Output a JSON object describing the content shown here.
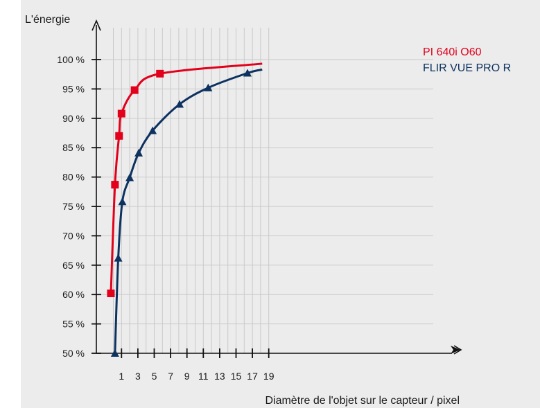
{
  "chart_data": {
    "type": "line",
    "ylabel": "L'énergie",
    "xlabel": "Diamètre de l'objet sur le capteur / pixel",
    "xlim": [
      -0.5,
      19.5
    ],
    "ylim": [
      50,
      102
    ],
    "x_ticks": [
      1,
      3,
      5,
      7,
      9,
      11,
      13,
      15,
      17,
      19
    ],
    "y_ticks": [
      50,
      55,
      60,
      65,
      70,
      75,
      80,
      85,
      90,
      95,
      100
    ],
    "y_tick_labels": [
      "50 %",
      "55 %",
      "60 %",
      "65 %",
      "70 %",
      "75 %",
      "80 %",
      "85 %",
      "90 %",
      "95 %",
      "100 %"
    ],
    "grid": true,
    "legend_position": "top-right",
    "series": [
      {
        "name": "PI 640i O60",
        "color": "#e2001a",
        "marker": "square",
        "points": [
          [
            -0.3,
            60.2
          ],
          [
            0.2,
            78.7
          ],
          [
            0.7,
            87
          ],
          [
            1.0,
            90.8
          ],
          [
            2.6,
            94.8
          ],
          [
            5.7,
            97.6
          ]
        ],
        "curve_end": [
          18.2,
          99.3
        ]
      },
      {
        "name": "FLIR VUE PRO R",
        "color": "#0d3260",
        "marker": "triangle",
        "points": [
          [
            0.2,
            50
          ],
          [
            0.6,
            66.2
          ],
          [
            1.1,
            75.8
          ],
          [
            2.0,
            79.9
          ],
          [
            3.1,
            84.1
          ],
          [
            4.8,
            87.9
          ],
          [
            8.1,
            92.4
          ],
          [
            11.6,
            95.2
          ],
          [
            16.4,
            97.7
          ]
        ],
        "curve_end": [
          18.2,
          98.3
        ]
      }
    ]
  }
}
